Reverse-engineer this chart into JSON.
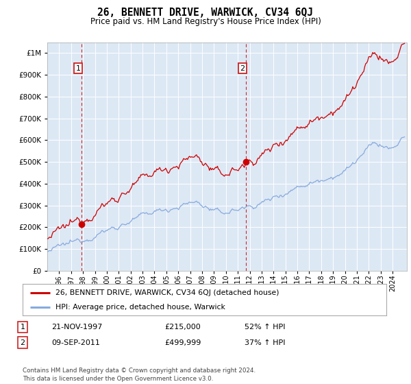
{
  "title": "26, BENNETT DRIVE, WARWICK, CV34 6QJ",
  "subtitle": "Price paid vs. HM Land Registry's House Price Index (HPI)",
  "legend_line1": "26, BENNETT DRIVE, WARWICK, CV34 6QJ (detached house)",
  "legend_line2": "HPI: Average price, detached house, Warwick",
  "sale1_year": 1997.88,
  "sale1_value": 215000,
  "sale2_year": 2011.69,
  "sale2_value": 499999,
  "table_row1": [
    "1",
    "21-NOV-1997",
    "£215,000",
    "52% ↑ HPI"
  ],
  "table_row2": [
    "2",
    "09-SEP-2011",
    "£499,999",
    "37% ↑ HPI"
  ],
  "footer": "Contains HM Land Registry data © Crown copyright and database right 2024.\nThis data is licensed under the Open Government Licence v3.0.",
  "background_color": "#dde8f5",
  "red_line_color": "#cc0000",
  "blue_line_color": "#88aadd",
  "annotation_box_color": "#cc2222",
  "grid_color": "#ffffff",
  "yticks": [
    0,
    100000,
    200000,
    300000,
    400000,
    500000,
    600000,
    700000,
    800000,
    900000,
    1000000
  ],
  "ylim": [
    0,
    1050000
  ],
  "xlim_start": 1995.0,
  "xlim_end": 2025.2,
  "xtick_years": [
    1996,
    1997,
    1998,
    1999,
    2000,
    2001,
    2002,
    2003,
    2004,
    2005,
    2006,
    2007,
    2008,
    2009,
    2010,
    2011,
    2012,
    2013,
    2014,
    2015,
    2016,
    2017,
    2018,
    2019,
    2020,
    2021,
    2022,
    2023,
    2024
  ],
  "hpi_seed": 12345,
  "prop_seed": 99999
}
